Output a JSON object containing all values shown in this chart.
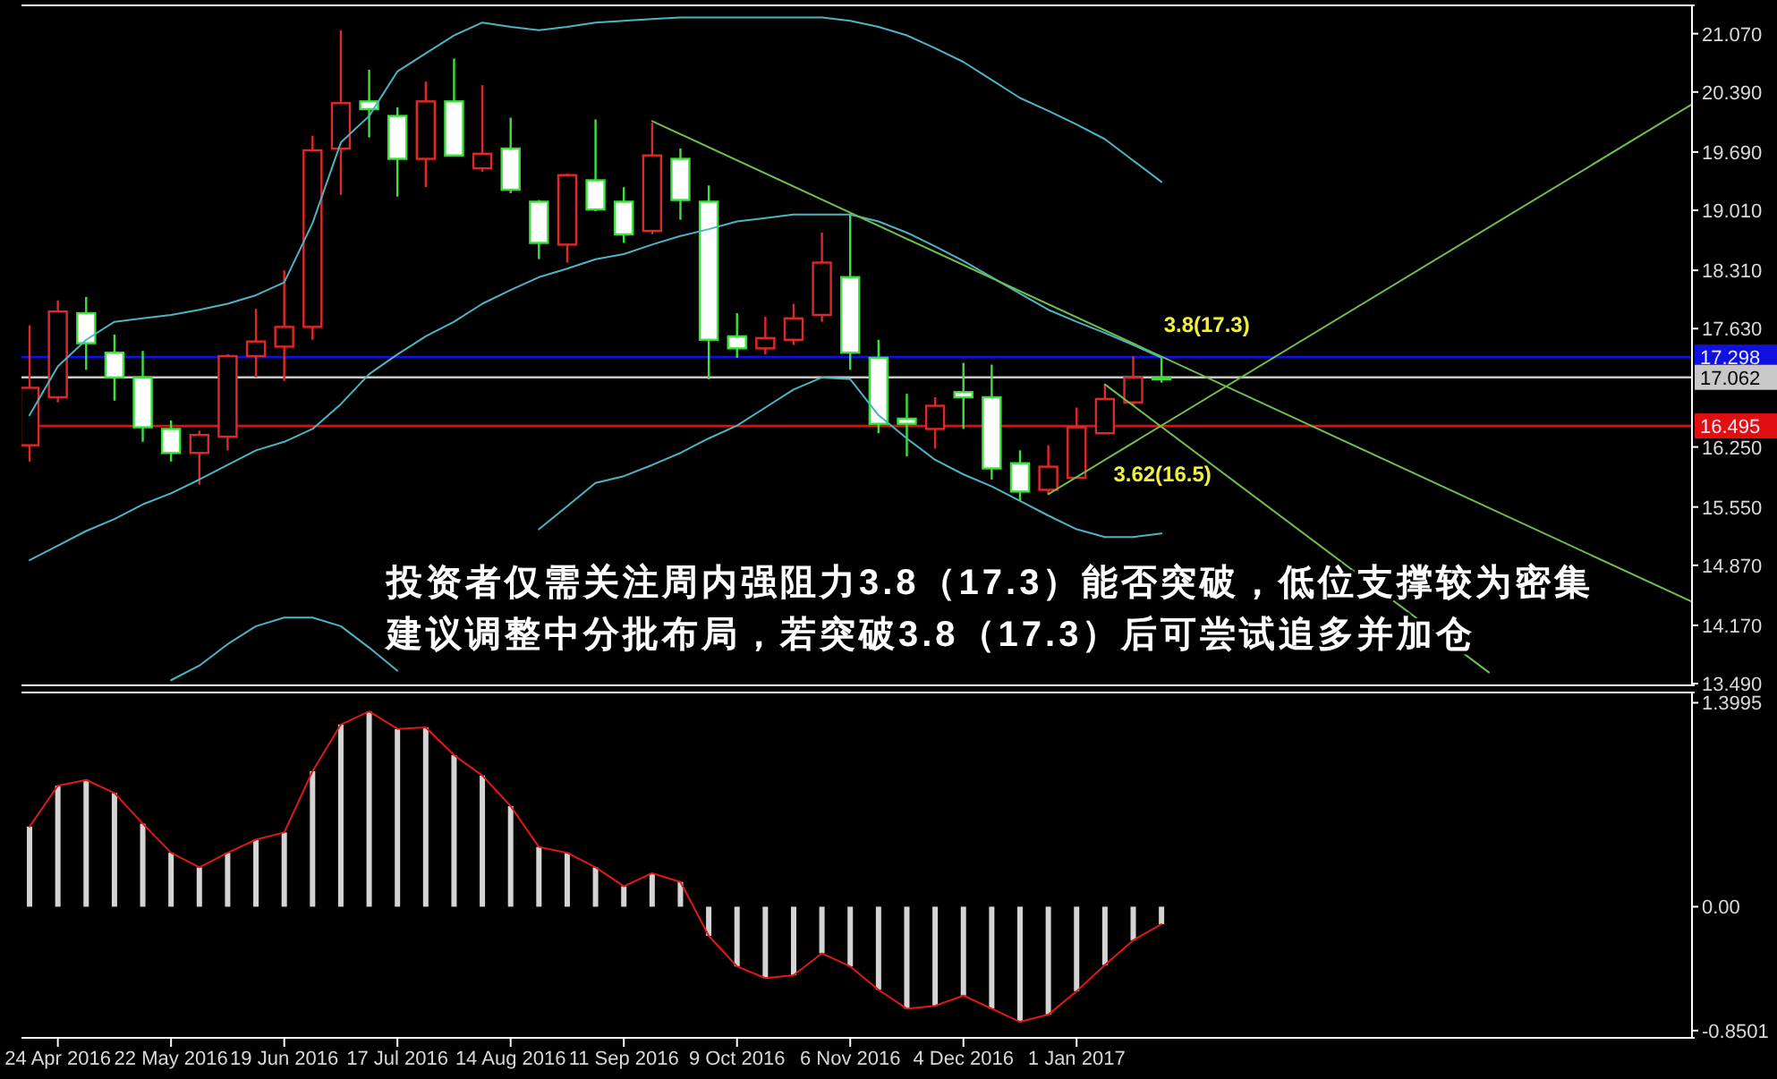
{
  "chart_data": [
    {
      "type": "candlestick",
      "x": [
        "2016-04-17",
        "2016-04-24",
        "2016-05-01",
        "2016-05-08",
        "2016-05-15",
        "2016-05-22",
        "2016-05-29",
        "2016-06-05",
        "2016-06-12",
        "2016-06-19",
        "2016-06-26",
        "2016-07-03",
        "2016-07-10",
        "2016-07-17",
        "2016-07-24",
        "2016-07-31",
        "2016-08-07",
        "2016-08-14",
        "2016-08-21",
        "2016-08-28",
        "2016-09-04",
        "2016-09-11",
        "2016-09-18",
        "2016-09-25",
        "2016-10-02",
        "2016-10-09",
        "2016-10-16",
        "2016-10-23",
        "2016-10-30",
        "2016-11-06",
        "2016-11-13",
        "2016-11-20",
        "2016-11-27",
        "2016-12-04",
        "2016-12-11",
        "2016-12-18",
        "2016-12-25",
        "2017-01-01",
        "2017-01-08",
        "2017-01-15",
        "2017-01-22"
      ],
      "ohlc": [
        [
          16.27,
          17.67,
          16.08,
          16.94
        ],
        [
          16.83,
          17.96,
          16.77,
          17.83
        ],
        [
          17.81,
          18.0,
          17.15,
          17.46
        ],
        [
          17.35,
          17.56,
          16.79,
          17.06
        ],
        [
          17.06,
          17.37,
          16.31,
          16.48
        ],
        [
          16.46,
          16.56,
          16.08,
          16.18
        ],
        [
          16.18,
          16.44,
          15.81,
          16.39
        ],
        [
          16.37,
          17.33,
          16.21,
          17.31
        ],
        [
          17.31,
          17.86,
          17.06,
          17.48
        ],
        [
          17.42,
          18.31,
          17.02,
          17.65
        ],
        [
          17.65,
          19.88,
          17.5,
          19.71
        ],
        [
          19.73,
          21.11,
          19.19,
          20.26
        ],
        [
          20.28,
          20.65,
          19.86,
          20.19
        ],
        [
          20.11,
          20.21,
          19.17,
          19.61
        ],
        [
          19.61,
          20.51,
          19.28,
          20.28
        ],
        [
          20.28,
          20.78,
          19.65,
          19.65
        ],
        [
          19.5,
          20.47,
          19.46,
          19.67
        ],
        [
          19.73,
          20.09,
          19.21,
          19.25
        ],
        [
          19.11,
          19.13,
          18.44,
          18.63
        ],
        [
          18.61,
          19.44,
          18.4,
          19.42
        ],
        [
          19.36,
          20.07,
          19.0,
          19.02
        ],
        [
          19.11,
          19.28,
          18.63,
          18.73
        ],
        [
          18.77,
          20.03,
          18.73,
          19.65
        ],
        [
          19.61,
          19.73,
          18.9,
          19.13
        ],
        [
          19.11,
          19.3,
          17.04,
          17.5
        ],
        [
          17.54,
          17.81,
          17.29,
          17.4
        ],
        [
          17.4,
          17.77,
          17.33,
          17.52
        ],
        [
          17.5,
          17.92,
          17.44,
          17.75
        ],
        [
          17.79,
          18.75,
          17.71,
          18.4
        ],
        [
          18.23,
          18.96,
          17.15,
          17.35
        ],
        [
          17.29,
          17.5,
          16.41,
          16.52
        ],
        [
          16.58,
          16.87,
          16.14,
          16.52
        ],
        [
          16.46,
          16.83,
          16.23,
          16.73
        ],
        [
          16.89,
          17.23,
          16.46,
          16.83
        ],
        [
          16.83,
          17.21,
          15.87,
          16.0
        ],
        [
          16.06,
          16.21,
          15.62,
          15.73
        ],
        [
          15.75,
          16.27,
          15.7,
          16.02
        ],
        [
          15.89,
          16.71,
          15.89,
          16.48
        ],
        [
          16.41,
          16.98,
          16.41,
          16.81
        ],
        [
          16.77,
          17.31,
          16.73,
          17.06
        ],
        [
          17.06,
          17.29,
          17.0,
          17.04
        ]
      ],
      "colors": [
        "#e02828",
        "#e02828",
        "#3ee03e",
        "#3ee03e",
        "#3ee03e",
        "#3ee03e",
        "#e02828",
        "#e02828",
        "#e02828",
        "#e02828",
        "#e02828",
        "#e02828",
        "#3ee03e",
        "#3ee03e",
        "#e02828",
        "#3ee03e",
        "#e02828",
        "#3ee03e",
        "#3ee03e",
        "#e02828",
        "#3ee03e",
        "#3ee03e",
        "#e02828",
        "#3ee03e",
        "#3ee03e",
        "#3ee03e",
        "#e02828",
        "#e02828",
        "#e02828",
        "#3ee03e",
        "#3ee03e",
        "#3ee03e",
        "#e02828",
        "#3ee03e",
        "#3ee03e",
        "#3ee03e",
        "#e02828",
        "#e02828",
        "#e02828",
        "#e02828",
        "#3ee03e"
      ],
      "series": [
        {
          "type": "line",
          "color": "#4cb4c4",
          "values": [
            16.62,
            17.19,
            17.5,
            17.71,
            17.75,
            17.79,
            17.85,
            17.92,
            18.02,
            18.17,
            18.86,
            19.8,
            20.11,
            20.63,
            20.84,
            21.05,
            21.2,
            21.15,
            21.11,
            21.15,
            21.2,
            21.22,
            21.24,
            21.26,
            21.26,
            21.26,
            21.26,
            21.26,
            21.26,
            21.22,
            21.15,
            21.05,
            20.9,
            20.74,
            20.53,
            20.32,
            20.17,
            20.01,
            19.84,
            19.59,
            19.34
          ]
        },
        {
          "type": "line",
          "color": "#4cb4c4",
          "values": [
            14.93,
            15.1,
            15.27,
            15.41,
            15.58,
            15.71,
            15.87,
            16.04,
            16.21,
            16.31,
            16.46,
            16.75,
            17.1,
            17.33,
            17.54,
            17.71,
            17.92,
            18.08,
            18.23,
            18.33,
            18.44,
            18.5,
            18.61,
            18.71,
            18.79,
            18.88,
            18.92,
            18.96,
            18.96,
            18.96,
            18.88,
            18.75,
            18.59,
            18.42,
            18.23,
            18.04,
            17.85,
            17.71,
            17.58,
            17.44,
            17.29
          ]
        },
        {
          "type": "line",
          "color": "#4cb4c4",
          "values": [
            null,
            null,
            null,
            null,
            null,
            13.53,
            13.7,
            13.95,
            14.16,
            14.26,
            14.26,
            14.16,
            13.91,
            13.64,
            null,
            null,
            null,
            null,
            15.29,
            15.56,
            15.83,
            15.91,
            16.04,
            16.18,
            16.35,
            16.5,
            16.71,
            16.92,
            17.06,
            17.04,
            16.62,
            16.35,
            16.1,
            15.93,
            15.79,
            15.62,
            15.45,
            15.29,
            15.2,
            15.2,
            15.24
          ]
        },
        {
          "type": "line",
          "color": "#6fbf4f",
          "x": [
            "2016-09-18",
            "2017-06-02"
          ],
          "values": [
            20.05,
            14.45
          ]
        },
        {
          "type": "line",
          "color": "#6fbf4f",
          "x": [
            "2017-01-08",
            "2017-04-13"
          ],
          "values": [
            16.98,
            13.62
          ]
        },
        {
          "type": "line",
          "color": "#6fbf4f",
          "x": [
            "2016-12-25",
            "2017-06-02"
          ],
          "values": [
            15.7,
            20.24
          ]
        }
      ],
      "xlim": [
        "2016-04-15",
        "2017-06-02"
      ],
      "ylim": [
        13.47,
        21.4
      ],
      "yticks": [
        {
          "value": 21.07,
          "label": "21.070"
        },
        {
          "value": 20.39,
          "label": "20.390"
        },
        {
          "value": 19.69,
          "label": "19.690"
        },
        {
          "value": 19.01,
          "label": "19.010"
        },
        {
          "value": 18.31,
          "label": "18.310"
        },
        {
          "value": 17.63,
          "label": "17.630"
        },
        {
          "value": 16.25,
          "label": "16.250"
        },
        {
          "value": 15.55,
          "label": "15.550"
        },
        {
          "value": 14.87,
          "label": "14.870"
        },
        {
          "value": 14.17,
          "label": "14.170"
        },
        {
          "value": 13.49,
          "label": "13.490"
        }
      ],
      "tick_labels": "y",
      "ref_lines": [
        {
          "axis": "y",
          "value": 17.298,
          "label": "17.298",
          "color": "#1010e0"
        },
        {
          "axis": "y",
          "value": 17.062,
          "label": "17.062",
          "color": "#c8c8c8"
        },
        {
          "axis": "y",
          "value": 16.495,
          "label": "16.495",
          "color": "#e01010"
        }
      ],
      "annotations": [
        {
          "text": "3.8(17.3)",
          "x": "2017-01-23",
          "y": 17.3
        },
        {
          "text": "3.62(16.5)",
          "x": "2017-01-20",
          "y": 16.5
        },
        "投资者仅需关注周内强阻力3.8（17.3）能否突破，低位支撑较为密集",
        "建议调整中分批布局，若突破3.8（17.3）后可尝试追多并加仓"
      ]
    },
    {
      "type": "bar",
      "x": [
        "2016-04-17",
        "2016-04-24",
        "2016-05-01",
        "2016-05-08",
        "2016-05-15",
        "2016-05-22",
        "2016-05-29",
        "2016-06-05",
        "2016-06-12",
        "2016-06-19",
        "2016-06-26",
        "2016-07-03",
        "2016-07-10",
        "2016-07-17",
        "2016-07-24",
        "2016-07-31",
        "2016-08-07",
        "2016-08-14",
        "2016-08-21",
        "2016-08-28",
        "2016-09-04",
        "2016-09-11",
        "2016-09-18",
        "2016-09-25",
        "2016-10-02",
        "2016-10-09",
        "2016-10-16",
        "2016-10-23",
        "2016-10-30",
        "2016-11-06",
        "2016-11-13",
        "2016-11-20",
        "2016-11-27",
        "2016-12-04",
        "2016-12-11",
        "2016-12-18",
        "2016-12-25",
        "2017-01-01",
        "2017-01-08",
        "2017-01-15",
        "2017-01-22"
      ],
      "series": [
        {
          "type": "bar",
          "color": "#d4d4d4",
          "values": [
            0.55,
            0.83,
            0.87,
            0.78,
            0.57,
            0.37,
            0.27,
            0.37,
            0.46,
            0.51,
            0.93,
            1.25,
            1.34,
            1.22,
            1.23,
            1.04,
            0.9,
            0.69,
            0.41,
            0.37,
            0.27,
            0.14,
            0.23,
            0.17,
            -0.2,
            -0.41,
            -0.49,
            -0.47,
            -0.32,
            -0.41,
            -0.57,
            -0.7,
            -0.68,
            -0.61,
            -0.7,
            -0.79,
            -0.74,
            -0.58,
            -0.4,
            -0.23,
            -0.12
          ]
        },
        {
          "type": "line",
          "color": "#e01818",
          "values": [
            0.55,
            0.83,
            0.87,
            0.78,
            0.57,
            0.37,
            0.27,
            0.37,
            0.46,
            0.51,
            0.93,
            1.25,
            1.34,
            1.22,
            1.23,
            1.04,
            0.9,
            0.69,
            0.41,
            0.37,
            0.27,
            0.14,
            0.23,
            0.17,
            -0.2,
            -0.41,
            -0.49,
            -0.47,
            -0.32,
            -0.41,
            -0.57,
            -0.7,
            -0.68,
            -0.61,
            -0.7,
            -0.79,
            -0.74,
            -0.58,
            -0.4,
            -0.23,
            -0.12
          ]
        }
      ],
      "xlim": [
        "2016-04-15",
        "2017-06-02"
      ],
      "xticks": [
        {
          "value": "2016-04-24",
          "label": "24 Apr 2016"
        },
        {
          "value": "2016-05-22",
          "label": "22 May 2016"
        },
        {
          "value": "2016-06-19",
          "label": "19 Jun 2016"
        },
        {
          "value": "2016-07-17",
          "label": "17 Jul 2016"
        },
        {
          "value": "2016-08-14",
          "label": "14 Aug 2016"
        },
        {
          "value": "2016-09-11",
          "label": "11 Sep 2016"
        },
        {
          "value": "2016-10-09",
          "label": "9 Oct 2016"
        },
        {
          "value": "2016-11-06",
          "label": "6 Nov 2016"
        },
        {
          "value": "2016-12-04",
          "label": "4 Dec 2016"
        },
        {
          "value": "2017-01-01",
          "label": "1 Jan 2017"
        }
      ],
      "ylim": [
        -0.9,
        1.47
      ],
      "yticks": [
        1.3995,
        {
          "value": 0,
          "label": "0.00"
        },
        -0.8501
      ]
    }
  ]
}
